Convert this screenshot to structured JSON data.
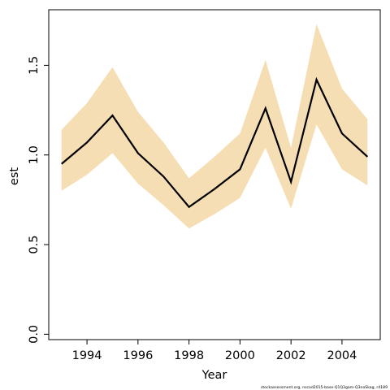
{
  "chart_data": {
    "type": "line",
    "title": "",
    "xlabel": "Year",
    "ylabel": "est",
    "xlim": [
      1992.5,
      2005.5
    ],
    "ylim": [
      -0.03,
      1.81
    ],
    "x_ticks": [
      1994,
      1996,
      1998,
      2000,
      2002,
      2004
    ],
    "x_tick_labels": [
      "1994",
      "1996",
      "1998",
      "2000",
      "2002",
      "2004"
    ],
    "y_ticks": [
      0.0,
      0.5,
      1.0,
      1.5
    ],
    "y_tick_labels": [
      "0.0",
      "0.5",
      "1.0",
      "1.5"
    ],
    "grid": false,
    "legend": "none",
    "series": [
      {
        "x": [
          1993,
          1994,
          1995,
          1996,
          1997,
          1998,
          1999,
          2000,
          2001,
          2002,
          2003,
          2004,
          2005
        ],
        "values": [
          0.95,
          1.07,
          1.22,
          1.01,
          0.88,
          0.71,
          0.81,
          0.92,
          1.26,
          0.85,
          1.42,
          1.12,
          0.99
        ],
        "lower": [
          0.8,
          0.89,
          1.01,
          0.84,
          0.72,
          0.59,
          0.67,
          0.76,
          1.04,
          0.7,
          1.17,
          0.92,
          0.83
        ],
        "upper": [
          1.14,
          1.29,
          1.49,
          1.24,
          1.07,
          0.87,
          0.99,
          1.12,
          1.53,
          1.04,
          1.73,
          1.37,
          1.2
        ],
        "line_color": "#000000",
        "band_color": "#f5deb3"
      }
    ],
    "credit": "stockassessment.org, nscod2015-base-Q1Q3gam-Q3noSkag, r4189"
  }
}
